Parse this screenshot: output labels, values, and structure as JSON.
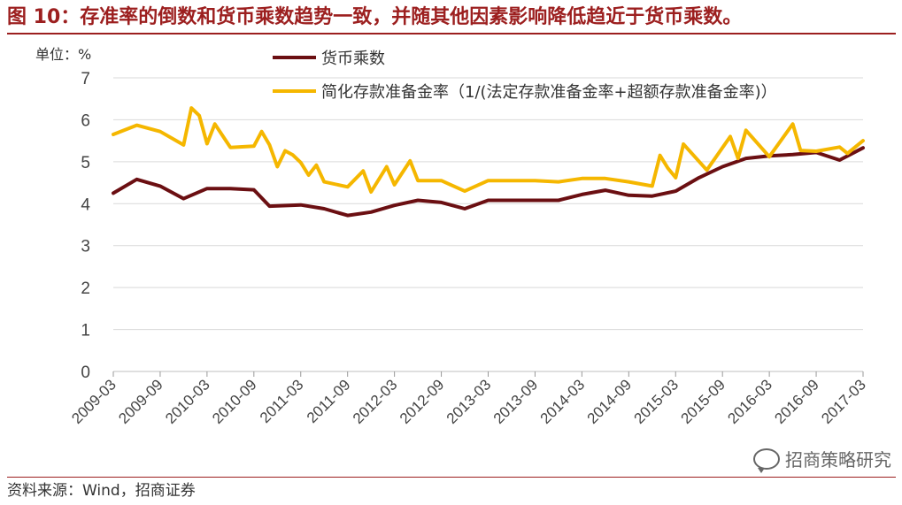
{
  "figure": {
    "title": "图 10：存准率的倒数和货币乘数趋势一致，并随其他因素影响降低趋近于货币乘数。",
    "source": "资料来源：Wind，招商证券",
    "watermark": "招商策略研究",
    "watermark_icon": "wechat-icon"
  },
  "colors": {
    "title": "#9c1f1f",
    "series_money_multiplier": "#6b0f12",
    "series_reserve_reciprocal": "#f5b700",
    "grid": "#d9d9d9"
  },
  "chart_data": {
    "type": "line",
    "title": "",
    "xlabel": "",
    "ylabel": "",
    "unit_label": "单位：%",
    "ylim": [
      0,
      7
    ],
    "yticks": [
      0,
      1,
      2,
      3,
      4,
      5,
      6,
      7
    ],
    "xlim": [
      "2009-03",
      "2017-03"
    ],
    "xticks": [
      "2009-03",
      "2009-09",
      "2010-03",
      "2010-09",
      "2011-03",
      "2011-09",
      "2012-03",
      "2012-09",
      "2013-03",
      "2013-09",
      "2014-03",
      "2014-09",
      "2015-03",
      "2015-09",
      "2016-03",
      "2016-09",
      "2017-03"
    ],
    "grid": "horizontal",
    "legend_position": "top-right",
    "series": [
      {
        "name": "货币乘数",
        "color": "#6b0f12",
        "points": [
          [
            "2009-03",
            4.25
          ],
          [
            "2009-06",
            4.58
          ],
          [
            "2009-09",
            4.42
          ],
          [
            "2009-12",
            4.12
          ],
          [
            "2010-03",
            4.36
          ],
          [
            "2010-06",
            4.36
          ],
          [
            "2010-09",
            4.33
          ],
          [
            "2010-11",
            3.94
          ],
          [
            "2011-03",
            3.97
          ],
          [
            "2011-06",
            3.88
          ],
          [
            "2011-09",
            3.72
          ],
          [
            "2011-12",
            3.8
          ],
          [
            "2012-03",
            3.96
          ],
          [
            "2012-06",
            4.08
          ],
          [
            "2012-09",
            4.03
          ],
          [
            "2012-12",
            3.88
          ],
          [
            "2013-03",
            4.08
          ],
          [
            "2013-06",
            4.08
          ],
          [
            "2013-09",
            4.08
          ],
          [
            "2013-12",
            4.08
          ],
          [
            "2014-03",
            4.22
          ],
          [
            "2014-06",
            4.32
          ],
          [
            "2014-09",
            4.2
          ],
          [
            "2014-12",
            4.18
          ],
          [
            "2015-03",
            4.3
          ],
          [
            "2015-06",
            4.62
          ],
          [
            "2015-09",
            4.88
          ],
          [
            "2015-12",
            5.08
          ],
          [
            "2016-03",
            5.14
          ],
          [
            "2016-06",
            5.17
          ],
          [
            "2016-09",
            5.22
          ],
          [
            "2016-12",
            5.04
          ],
          [
            "2017-03",
            5.33
          ]
        ]
      },
      {
        "name": "简化存款准备金率（1/(法定存款准备金率+超额存款准备金率)）",
        "color": "#f5b700",
        "points": [
          [
            "2009-03",
            5.65
          ],
          [
            "2009-06",
            5.87
          ],
          [
            "2009-09",
            5.72
          ],
          [
            "2009-12",
            5.4
          ],
          [
            "2010-01",
            6.28
          ],
          [
            "2010-02",
            6.1
          ],
          [
            "2010-03",
            5.43
          ],
          [
            "2010-04",
            5.9
          ],
          [
            "2010-06",
            5.34
          ],
          [
            "2010-09",
            5.37
          ],
          [
            "2010-10",
            5.72
          ],
          [
            "2010-11",
            5.4
          ],
          [
            "2010-12",
            4.88
          ],
          [
            "2011-01",
            5.26
          ],
          [
            "2011-02",
            5.16
          ],
          [
            "2011-03",
            4.98
          ],
          [
            "2011-04",
            4.68
          ],
          [
            "2011-05",
            4.92
          ],
          [
            "2011-06",
            4.52
          ],
          [
            "2011-09",
            4.4
          ],
          [
            "2011-11",
            4.78
          ],
          [
            "2011-12",
            4.28
          ],
          [
            "2012-02",
            4.88
          ],
          [
            "2012-03",
            4.45
          ],
          [
            "2012-05",
            5.02
          ],
          [
            "2012-06",
            4.55
          ],
          [
            "2012-09",
            4.55
          ],
          [
            "2012-12",
            4.3
          ],
          [
            "2013-03",
            4.55
          ],
          [
            "2013-06",
            4.55
          ],
          [
            "2013-09",
            4.55
          ],
          [
            "2013-12",
            4.52
          ],
          [
            "2014-03",
            4.6
          ],
          [
            "2014-06",
            4.6
          ],
          [
            "2014-09",
            4.52
          ],
          [
            "2014-12",
            4.42
          ],
          [
            "2015-01",
            5.15
          ],
          [
            "2015-02",
            4.85
          ],
          [
            "2015-03",
            4.62
          ],
          [
            "2015-04",
            5.42
          ],
          [
            "2015-07",
            4.8
          ],
          [
            "2015-10",
            5.6
          ],
          [
            "2015-11",
            5.08
          ],
          [
            "2015-12",
            5.75
          ],
          [
            "2016-03",
            5.12
          ],
          [
            "2016-06",
            5.9
          ],
          [
            "2016-07",
            5.27
          ],
          [
            "2016-09",
            5.25
          ],
          [
            "2016-12",
            5.35
          ],
          [
            "2017-01",
            5.2
          ],
          [
            "2017-03",
            5.5
          ]
        ]
      }
    ]
  }
}
